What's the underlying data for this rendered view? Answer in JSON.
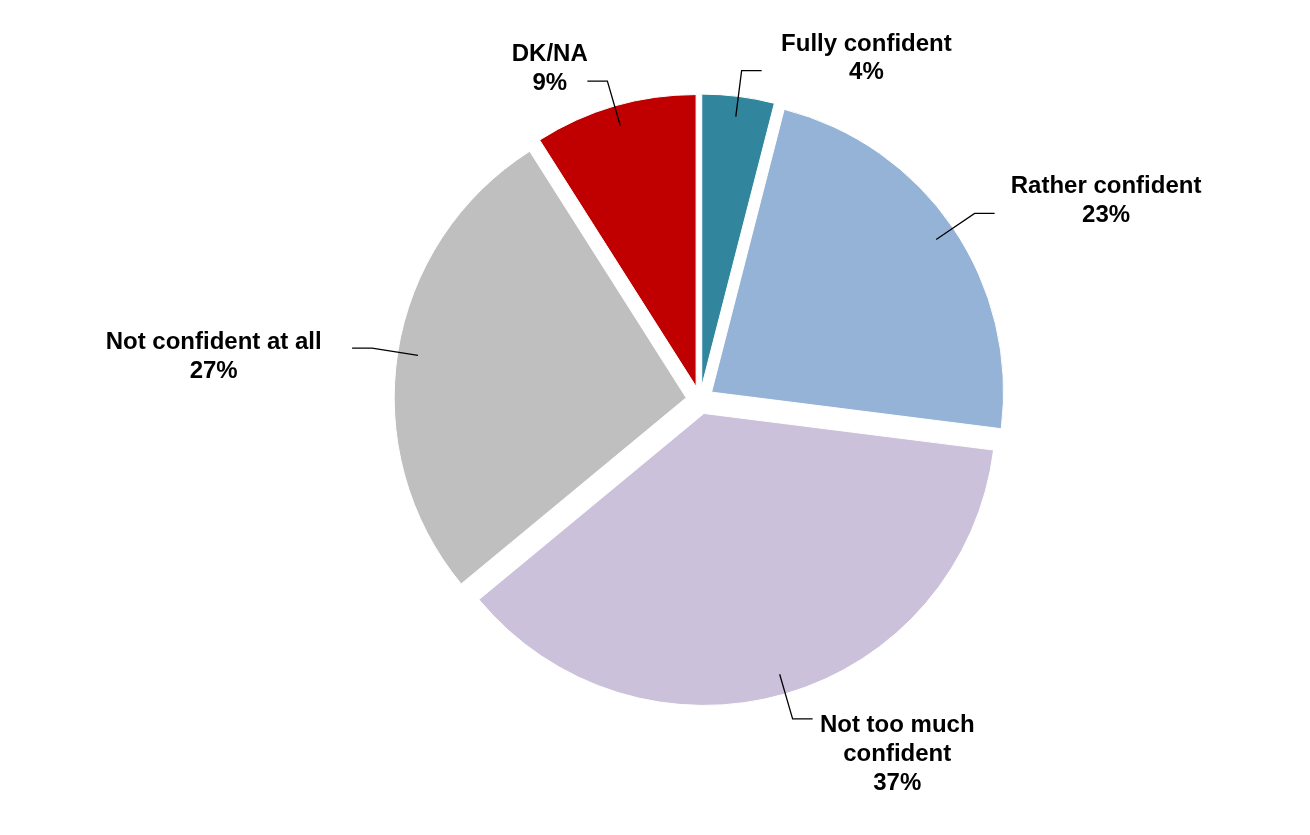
{
  "chart_data": {
    "type": "pie",
    "categories": [
      "Fully confident",
      "Rather confident",
      "Not too much confident",
      "Not confident at all",
      "DK/NA"
    ],
    "values": [
      4,
      23,
      37,
      27,
      9
    ],
    "colors": [
      "#31859c",
      "#95b3d7",
      "#ccc1da",
      "#bfbfbf",
      "#c00000"
    ],
    "value_labels": [
      "4%",
      "23%",
      "37%",
      "27%",
      "9%"
    ]
  }
}
